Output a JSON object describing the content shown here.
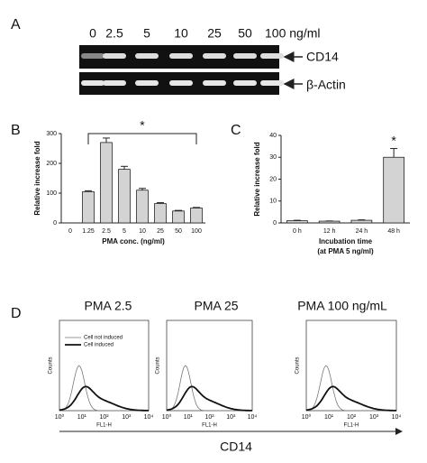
{
  "panel_a": {
    "label": "A",
    "lanes": [
      "0",
      "2.5",
      "5",
      "10",
      "25",
      "50",
      "100 ng/ml"
    ],
    "gels": [
      "CD14",
      "β-Actin"
    ]
  },
  "chart_data": [
    {
      "type": "bar",
      "panel": "B",
      "ylabel": "Relative increase fold",
      "xlabel": "PMA conc. (ng/ml)",
      "categories": [
        "0",
        "1.25",
        "2.5",
        "5",
        "10",
        "25",
        "50",
        "100"
      ],
      "values": [
        0,
        105,
        270,
        180,
        110,
        65,
        40,
        50
      ],
      "errors": [
        0,
        3,
        15,
        10,
        6,
        3,
        2,
        2
      ],
      "color": "#d3d3d3",
      "ylim": [
        0,
        300
      ],
      "yticks": [
        0,
        100,
        200,
        300
      ],
      "annotation": "*"
    },
    {
      "type": "bar",
      "panel": "C",
      "ylabel": "Relative increase fold",
      "xlabel": "Incubation time",
      "xlabel2": "(at PMA 5 ng/ml)",
      "categories": [
        "0 h",
        "12 h",
        "24 h",
        "48 h"
      ],
      "values": [
        1,
        0.8,
        1.2,
        30
      ],
      "errors": [
        0.2,
        0.1,
        0.2,
        4
      ],
      "color": "#d3d3d3",
      "ylim": [
        0,
        40
      ],
      "yticks": [
        0,
        10,
        20,
        30,
        40
      ],
      "annotation": "*"
    }
  ],
  "panel_d": {
    "label": "D",
    "titles": [
      "PMA 2.5",
      "PMA 25",
      "PMA 100 ng/mL"
    ],
    "legend": [
      "Cell not induced",
      "Cell induced"
    ],
    "ylabel": "Counts",
    "xlabel": "FL1-H",
    "xticks": [
      "10⁰",
      "10¹",
      "10²",
      "10³",
      "10⁴"
    ],
    "axis_label": "CD14"
  }
}
